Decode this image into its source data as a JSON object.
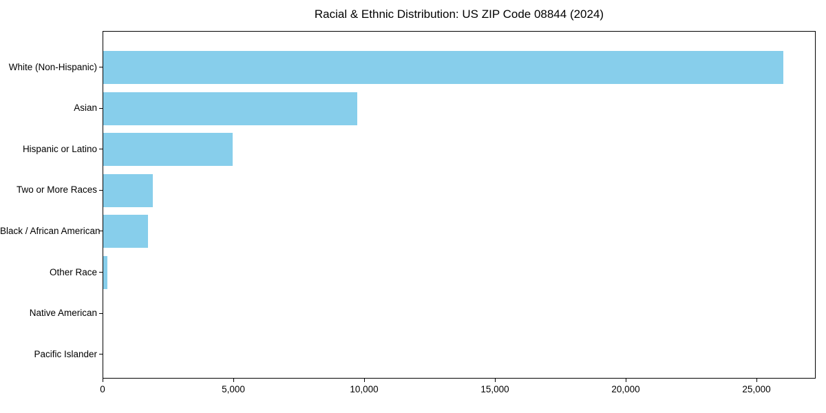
{
  "title": "Racial & Ethnic Distribution: US ZIP Code 08844 (2024)",
  "colors": {
    "bar": "#87CEEB",
    "axis": "#000000",
    "text": "#000000",
    "background": "#FFFFFF"
  },
  "chart_data": {
    "type": "bar",
    "orientation": "horizontal",
    "title": "Racial & Ethnic Distribution: US ZIP Code 08844 (2024)",
    "categories": [
      "White (Non-Hispanic)",
      "Asian",
      "Hispanic or Latino",
      "Two or More Races",
      "Black / African American",
      "Other Race",
      "Native American",
      "Pacific Islander"
    ],
    "values": [
      26000,
      9700,
      4950,
      1900,
      1700,
      150,
      0,
      0
    ],
    "xlabel": "",
    "ylabel": "",
    "xlim": [
      0,
      27260
    ],
    "xticks": [
      0,
      5000,
      10000,
      15000,
      20000,
      25000
    ],
    "xtick_labels": [
      "0",
      "5,000",
      "10,000",
      "15,000",
      "20,000",
      "25,000"
    ],
    "grid": false,
    "legend": null,
    "bar_color": "#87CEEB"
  }
}
